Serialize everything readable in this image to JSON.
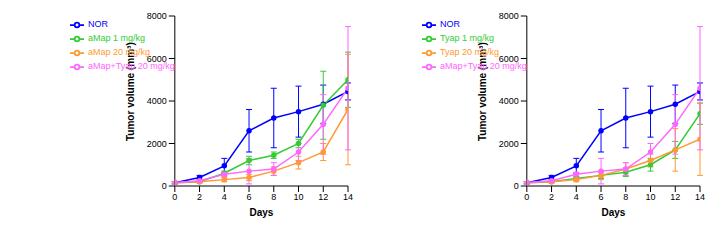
{
  "chart_data": [
    {
      "type": "line",
      "x_label": "Days",
      "y_label": "Tumor volume (mm³)",
      "x": [
        0,
        2,
        4,
        6,
        8,
        10,
        12,
        14
      ],
      "xlim": [
        0,
        14
      ],
      "xticks": [
        0,
        2,
        4,
        6,
        8,
        10,
        12,
        14
      ],
      "ylim": [
        0,
        8000
      ],
      "yticks": [
        0,
        2000,
        4000,
        6000,
        8000
      ],
      "legend": "upper left",
      "grid": false,
      "series": [
        {
          "name": "NOR",
          "color": "#0000ff",
          "marker": "circle",
          "values": [
            150,
            400,
            950,
            2600,
            3200,
            3500,
            3850,
            4450
          ],
          "errors": [
            50,
            100,
            350,
            1000,
            1400,
            1200,
            900,
            400
          ]
        },
        {
          "name": "aMap 1 mg/kg",
          "color": "#33cc33",
          "marker": "circle",
          "values": [
            150,
            200,
            600,
            1200,
            1450,
            2000,
            3800,
            5000
          ],
          "errors": [
            50,
            50,
            100,
            200,
            150,
            200,
            1600,
            1300
          ]
        },
        {
          "name": "aMap 20 mg/kg",
          "color": "#ff9933",
          "marker": "circle",
          "values": [
            150,
            200,
            300,
            400,
            700,
            1100,
            1600,
            3600
          ],
          "errors": [
            50,
            50,
            100,
            150,
            200,
            300,
            400,
            2600
          ]
        },
        {
          "name": "aMap+Tyap 20 mg/kg",
          "color": "#ff66ff",
          "marker": "circle",
          "values": [
            150,
            250,
            550,
            700,
            800,
            1600,
            2900,
            4600
          ],
          "errors": [
            50,
            50,
            100,
            600,
            300,
            400,
            1400,
            2900
          ]
        }
      ]
    },
    {
      "type": "line",
      "x_label": "Days",
      "y_label": "Tumor volume (mm³)",
      "x": [
        0,
        2,
        4,
        6,
        8,
        10,
        12,
        14
      ],
      "xlim": [
        0,
        14
      ],
      "xticks": [
        0,
        2,
        4,
        6,
        8,
        10,
        12,
        14
      ],
      "ylim": [
        0,
        8000
      ],
      "yticks": [
        0,
        2000,
        4000,
        6000,
        8000
      ],
      "legend": "upper left",
      "grid": false,
      "series": [
        {
          "name": "NOR",
          "color": "#0000ff",
          "marker": "circle",
          "values": [
            150,
            400,
            950,
            2600,
            3200,
            3500,
            3850,
            4450
          ],
          "errors": [
            50,
            100,
            350,
            1000,
            1400,
            1200,
            900,
            400
          ]
        },
        {
          "name": "Tyap 1 mg/kg",
          "color": "#33cc33",
          "marker": "circle",
          "values": [
            150,
            200,
            350,
            500,
            650,
            1000,
            1700,
            3400
          ],
          "errors": [
            50,
            50,
            100,
            150,
            200,
            300,
            400,
            500
          ]
        },
        {
          "name": "Tyap 20 mg/kg",
          "color": "#ff9933",
          "marker": "circle",
          "values": [
            150,
            200,
            300,
            500,
            800,
            1200,
            1700,
            2200
          ],
          "errors": [
            50,
            50,
            100,
            200,
            300,
            300,
            1000,
            1700
          ]
        },
        {
          "name": "aMap+Tyap 20 mg/kg",
          "color": "#ff66ff",
          "marker": "circle",
          "values": [
            150,
            250,
            550,
            700,
            800,
            1600,
            2900,
            4600
          ],
          "errors": [
            50,
            50,
            100,
            600,
            300,
            400,
            1400,
            2900
          ]
        }
      ]
    }
  ]
}
